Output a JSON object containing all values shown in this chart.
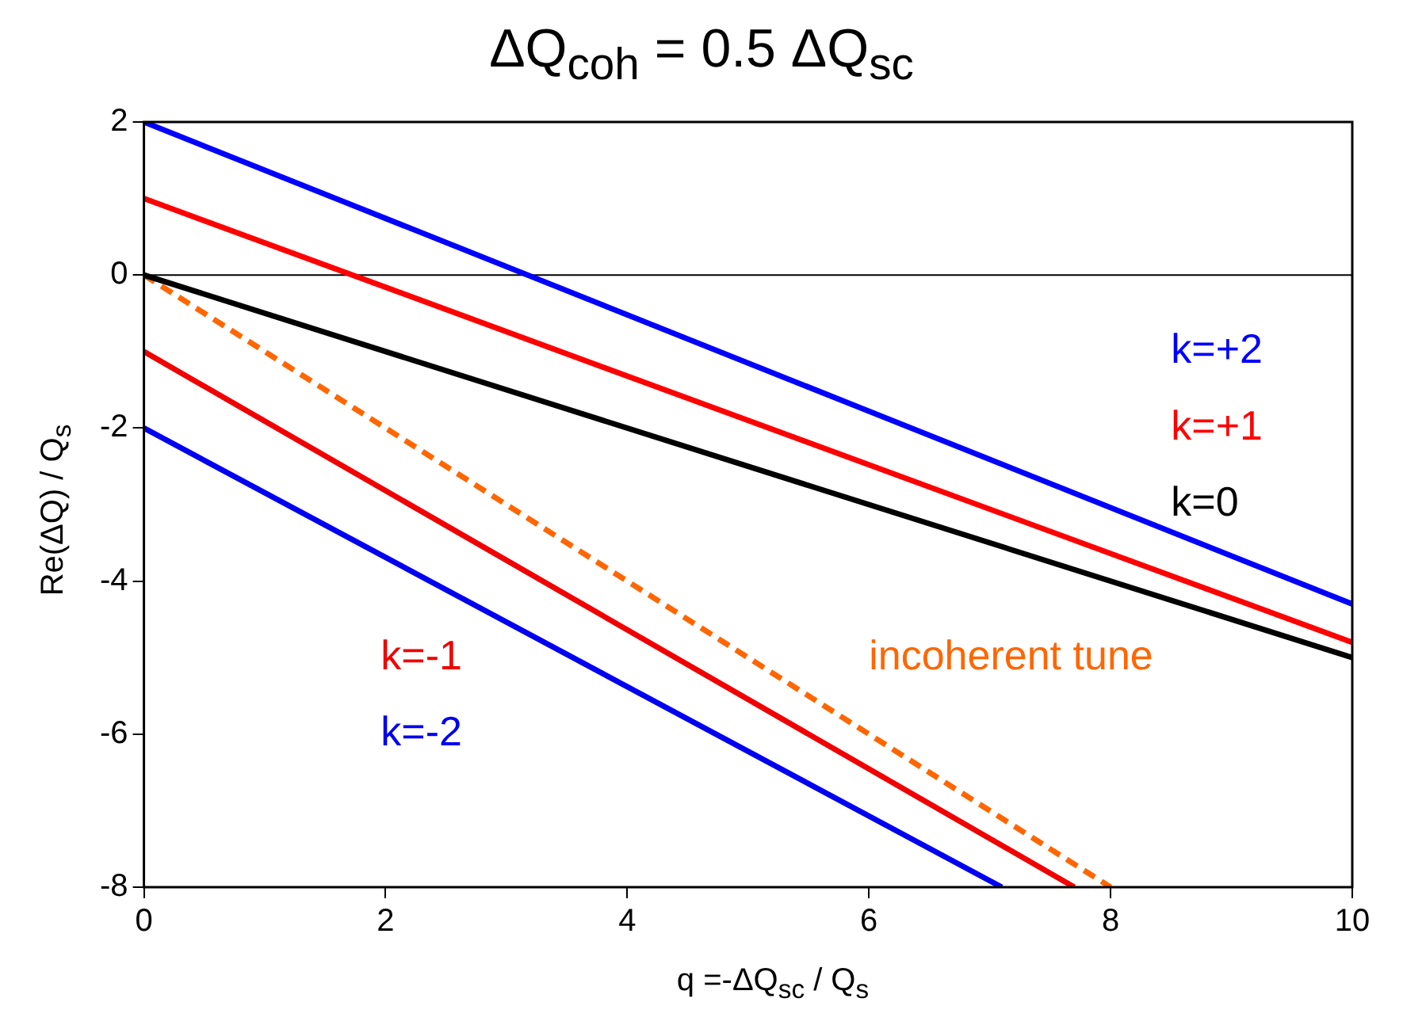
{
  "chart_data": {
    "type": "line",
    "title": "ΔQ$_{coh}$ =  0.5 ΔQ$_{sc}$",
    "xlabel": "q =-ΔQ$_{sc}$ / Q$_{s}$",
    "ylabel": "Re(ΔQ) / Q$_{s}$",
    "xlim": [
      0,
      10
    ],
    "ylim": [
      -8,
      2
    ],
    "xticks": [
      0,
      2,
      4,
      6,
      8,
      10
    ],
    "yticks": [
      -8,
      -6,
      -4,
      -2,
      0,
      2
    ],
    "grid": false,
    "legend": false,
    "marker": "none",
    "ref_lines": [
      {
        "axis": "y",
        "value": 0,
        "color": "#000000"
      }
    ],
    "series": [
      {
        "name": "k=+2",
        "color": "#0000ff",
        "x": [
          0,
          10
        ],
        "values": [
          2,
          -4.3
        ]
      },
      {
        "name": "k=+1",
        "color": "#ff0000",
        "x": [
          0,
          10
        ],
        "values": [
          1,
          -4.8
        ]
      },
      {
        "name": "k=0",
        "color": "#000000",
        "x": [
          0,
          10
        ],
        "values": [
          0,
          -5
        ]
      },
      {
        "name": "k=-1",
        "color": "#f00000",
        "x": [
          0,
          7.7
        ],
        "values": [
          -1,
          -8
        ]
      },
      {
        "name": "k=-2",
        "color": "#0000f0",
        "x": [
          0,
          7.1
        ],
        "values": [
          -2,
          -8
        ]
      },
      {
        "name": "incoherent tune",
        "color": "#ff6600",
        "line_style": "dashed",
        "x": [
          0,
          8
        ],
        "values": [
          0,
          -8
        ]
      }
    ]
  }
}
